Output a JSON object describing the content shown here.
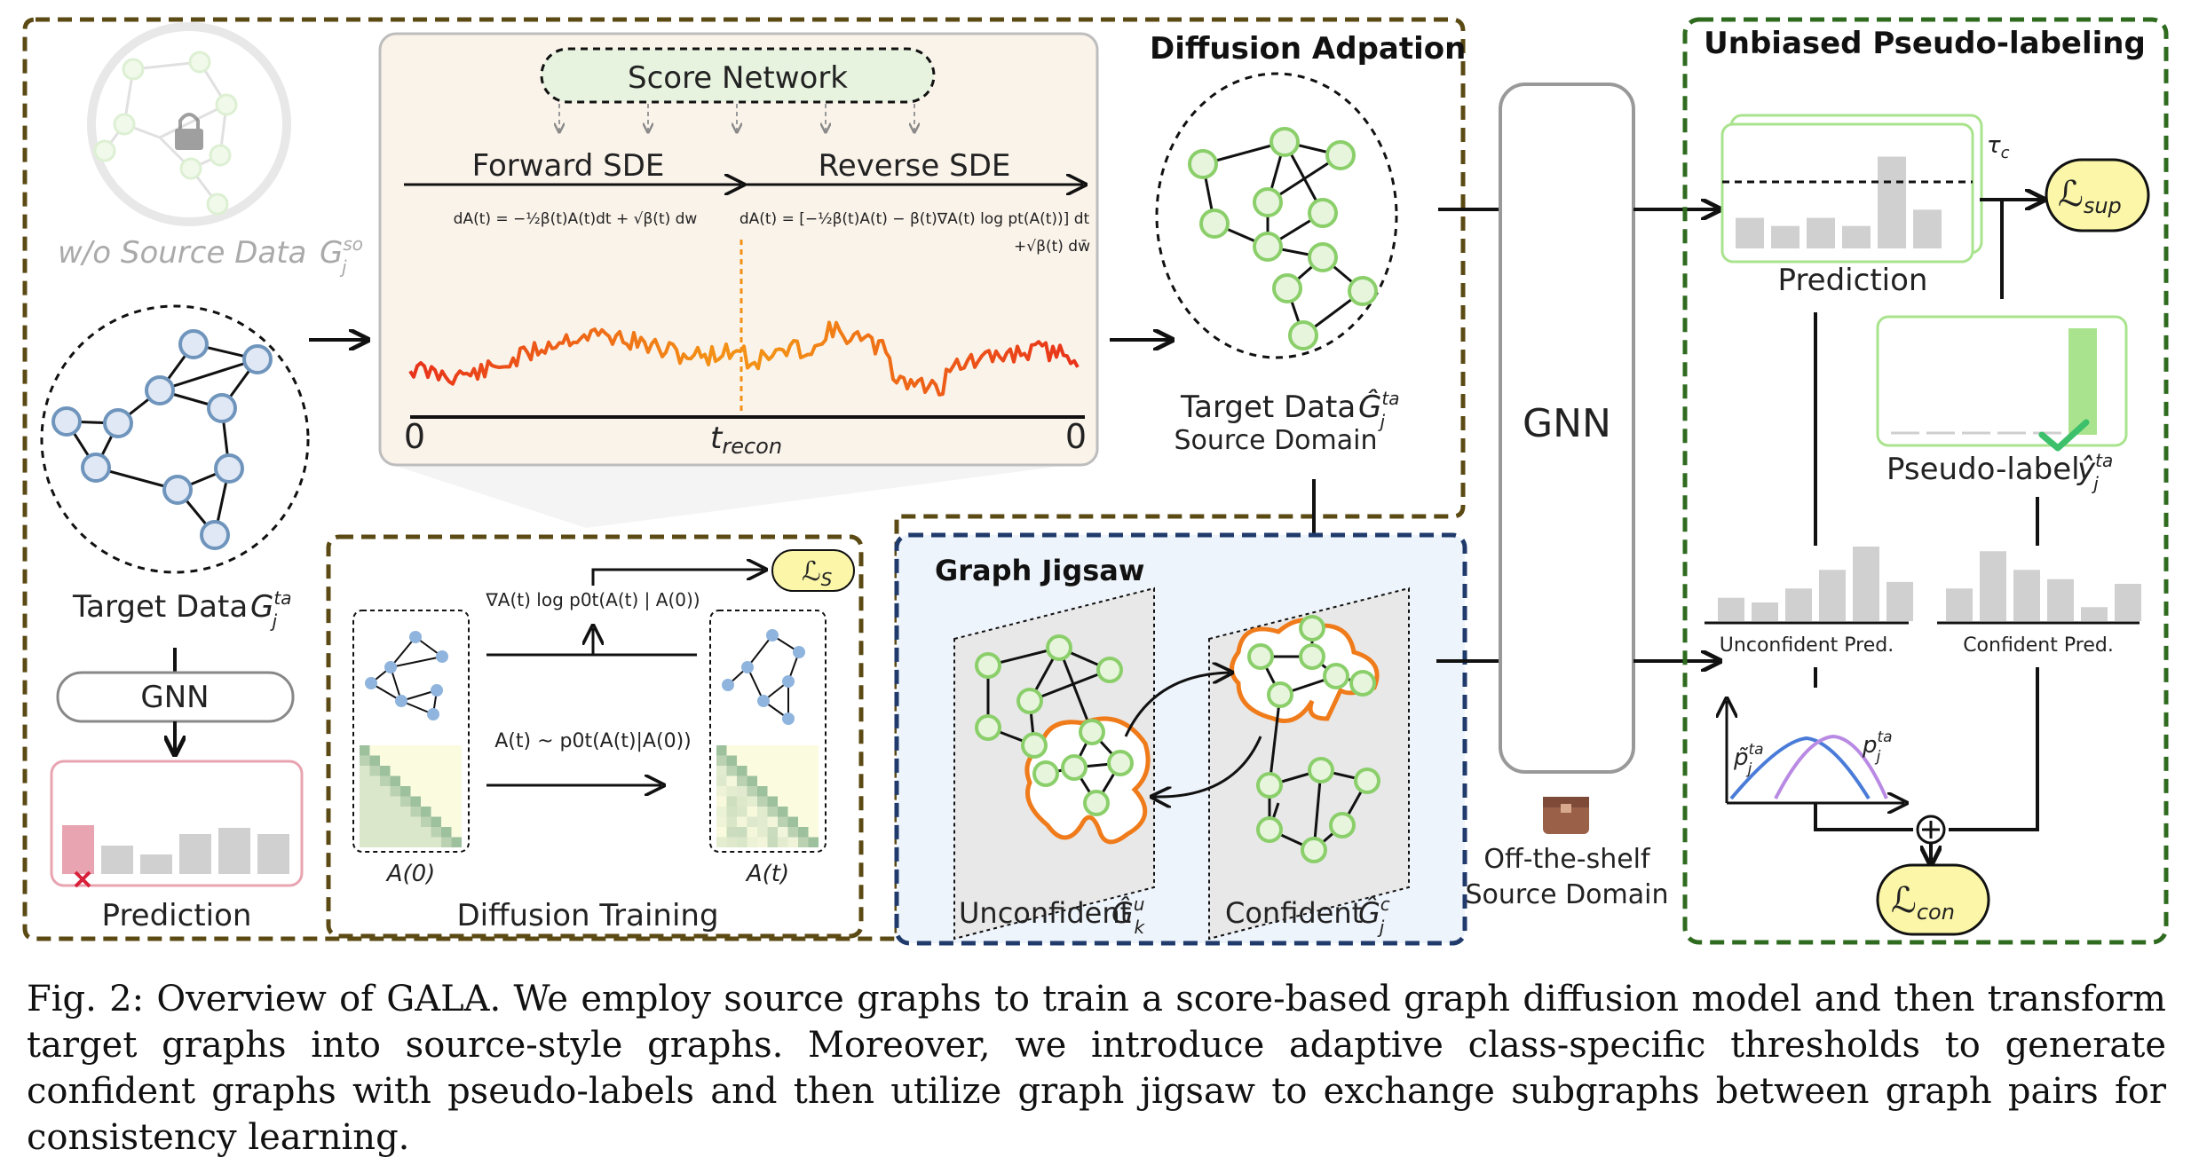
{
  "labels": {
    "wo_source": "w/o Source Data",
    "wo_source_sym": "G",
    "wo_source_sup": "so",
    "wo_source_sub": "j",
    "target_data": "Target Data",
    "target_sym": "G",
    "target_sup": "ta",
    "target_sub": "j",
    "gnn_small": "GNN",
    "prediction_left": "Prediction",
    "score_network": "Score Network",
    "forward_sde": "Forward SDE",
    "reverse_sde": "Reverse SDE",
    "forward_eq": "dA(t) = −½β(t)A(t)dt + √β(t) dw",
    "reverse_eq": "dA(t) = [−½β(t)A(t) − β(t)∇A(t) log pt(A(t))] dt",
    "reverse_eq2": "+√β(t) dw̄",
    "axis_zero_left": "0",
    "axis_zero_right": "0",
    "t_recon": "t",
    "t_recon_sub": "recon",
    "diffusion_adaptation": "Diffusion Adpation",
    "target_data_hat": "Target Data",
    "target_hat_sym": "Ĝ",
    "target_hat_sup": "ta",
    "target_hat_sub": "j",
    "source_domain": "Source Domain",
    "grad_log": "∇A(t) log p0t(A(t) | A(0))",
    "loss_s": "ℒ",
    "loss_s_sub": "S",
    "a_t_sample": "A(t) ~ p0t(A(t)|A(0))",
    "a_zero": "A(0)",
    "a_t": "A(t)",
    "diffusion_training": "Diffusion Training",
    "graph_jigsaw": "Graph Jigsaw",
    "unconfident": "Unconfident",
    "unconf_sym": "Ĝ",
    "unconf_sup": "u",
    "unconf_sub": "k",
    "confident": "Confident",
    "conf_sym": "Ĝ",
    "conf_sup": "c",
    "conf_sub": "j",
    "gnn_big": "GNN",
    "off_the_shelf": "Off-the-shelf",
    "source_domain2": "Source Domain",
    "unbiased_pseudo": "Unbiased Pseudo-labeling",
    "prediction_right": "Prediction",
    "tau": "τ",
    "tau_sub": "c",
    "loss_sup": "ℒ",
    "loss_sup_sub": "sup",
    "pseudo_label": "Pseudo-label",
    "pseudo_sym": "ŷ",
    "pseudo_sup": "ta",
    "pseudo_sub": "j",
    "unconfident_pred": "Unconfident Pred.",
    "confident_pred": "Confident Pred.",
    "p_tilde": "p̃",
    "p_tilde_sup": "ta",
    "p_tilde_sub": "j",
    "p_plain": "p",
    "p_plain_sup": "ta",
    "p_plain_sub": "j",
    "loss_con": "ℒ",
    "loss_con_sub": "con"
  },
  "bars": {
    "left_prediction": [
      0.55,
      0.32,
      0.22,
      0.45,
      0.52,
      0.45
    ],
    "right_prediction": [
      0.3,
      0.22,
      0.3,
      0.22,
      0.9,
      0.38
    ],
    "pseudo_label": [
      0,
      0,
      0,
      0,
      0,
      1.0
    ],
    "unconfident_pred": [
      0.25,
      0.2,
      0.35,
      0.55,
      0.8,
      0.42
    ],
    "confident_pred": [
      0.35,
      0.75,
      0.55,
      0.45,
      0.15,
      0.4
    ]
  },
  "colors": {
    "brown_dash": "#5b4a14",
    "green_dash": "#2f6b1f",
    "blue_dash": "#1f3a6b",
    "blue_node": "#8fb4dd",
    "green_node": "#a9e38d",
    "orange": "#f07b1a",
    "red_bar": "#e8a4b0",
    "bar_gray": "#d0d0d0",
    "yellow": "#fbf6a8",
    "green_fill": "#e9f5df"
  },
  "caption": {
    "text": "Fig. 2: Overview of GALA. We employ source graphs to train a score-based graph diffusion model and then transform target graphs into source-style graphs. Moreover, we introduce adaptive class-specific thresholds to generate confident graphs with pseudo-labels and then utilize graph jigsaw to exchange subgraphs between graph pairs for consistency learning."
  }
}
